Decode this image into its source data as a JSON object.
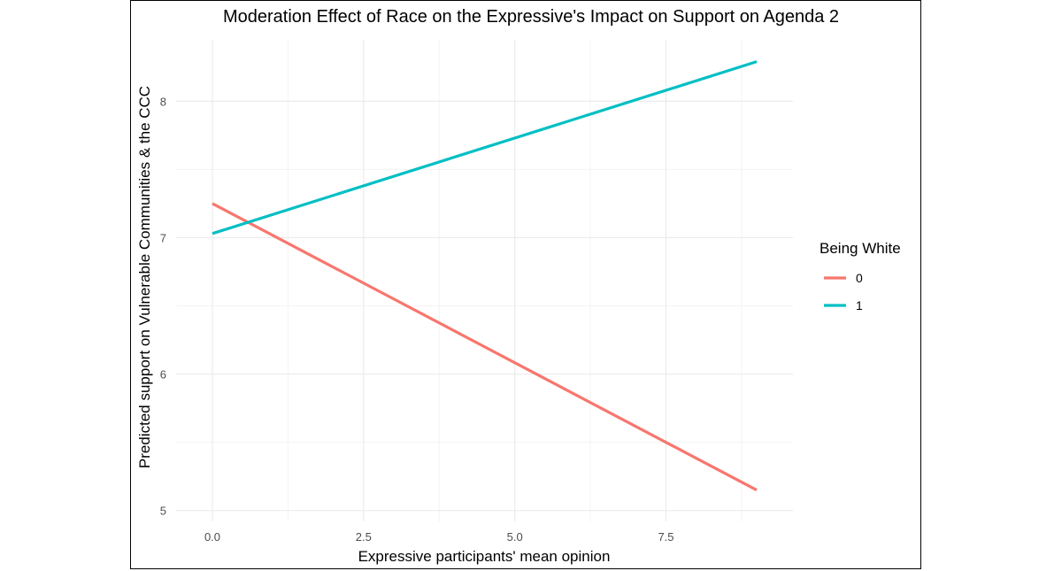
{
  "chart_data": {
    "type": "line",
    "title": "Moderation Effect of Race on the Expressive's Impact on Support on Agenda 2",
    "xlabel": "Expressive participants' mean opinion",
    "ylabel": "Predicted support on Vulnerable Communities & the CCC",
    "xlim": [
      -0.6,
      9.6
    ],
    "ylim": [
      4.92,
      8.45
    ],
    "x_ticks": [
      0.0,
      2.5,
      5.0,
      7.5
    ],
    "x_tick_labels": [
      "0.0",
      "2.5",
      "5.0",
      "7.5"
    ],
    "y_ticks": [
      5,
      6,
      7,
      8
    ],
    "y_tick_labels": [
      "5",
      "6",
      "7",
      "8"
    ],
    "grid": true,
    "legend": {
      "title": "Being White",
      "position": "right"
    },
    "series": [
      {
        "name": "0",
        "color": "#F8766D",
        "x": [
          0.0,
          9.0
        ],
        "y": [
          7.25,
          5.15
        ]
      },
      {
        "name": "1",
        "color": "#00BFC4",
        "x": [
          0.0,
          9.0
        ],
        "y": [
          7.03,
          8.29
        ]
      }
    ]
  }
}
